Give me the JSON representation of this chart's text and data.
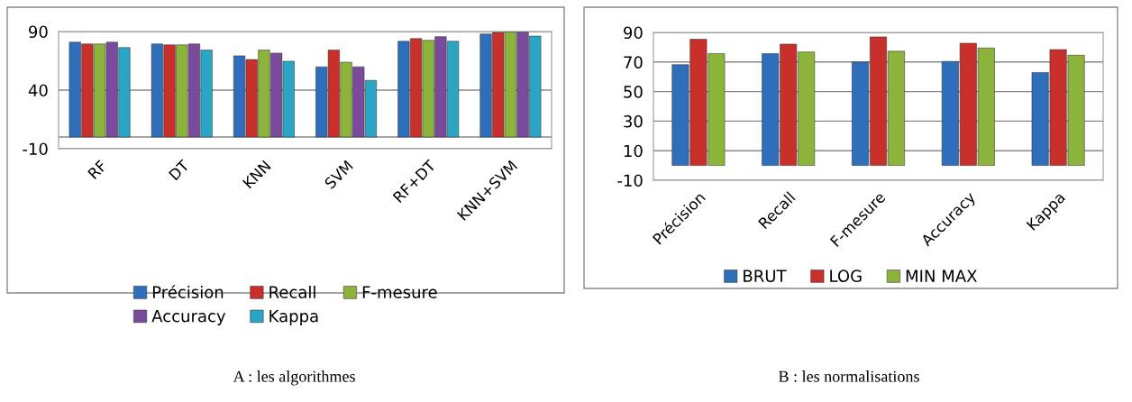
{
  "chart_data": [
    {
      "type": "bar",
      "categories": [
        "RF",
        "DT",
        "KNN",
        "SVM",
        "RF+DT",
        "KNN+SVM"
      ],
      "ylim": [
        -10,
        90
      ],
      "yticks": [
        -10,
        40,
        90
      ],
      "grid": "y",
      "legend": "bottom",
      "ref_lines": [
        {
          "axis": "y",
          "value": 0
        }
      ],
      "annotations": [
        "A : les algorithmes"
      ],
      "series": [
        {
          "name": "Précision",
          "color": "#2f6eba",
          "values": [
            80.9,
            79.4,
            69.3,
            59.9,
            81.7,
            87.9
          ]
        },
        {
          "name": "Recall",
          "color": "#c9302c",
          "values": [
            79.4,
            78.6,
            66.1,
            74.2,
            84.0,
            89.2
          ]
        },
        {
          "name": "F-mesure",
          "color": "#8db43a",
          "values": [
            79.4,
            78.6,
            74.2,
            63.8,
            82.5,
            89.5
          ]
        },
        {
          "name": "Accuracy",
          "color": "#7a4a9c",
          "values": [
            80.9,
            79.4,
            71.6,
            59.9,
            85.6,
            89.5
          ]
        },
        {
          "name": "Kappa",
          "color": "#2aa6c4",
          "values": [
            76.3,
            74.2,
            64.6,
            48.3,
            81.7,
            86.1
          ]
        }
      ]
    },
    {
      "type": "bar",
      "categories": [
        "Précision",
        "Recall",
        "F-mesure",
        "Accuracy",
        "Kappa"
      ],
      "ylim": [
        -10,
        90
      ],
      "yticks": [
        -10,
        10,
        30,
        50,
        70,
        90
      ],
      "grid": "y",
      "legend": "bottom",
      "annotations": [
        "B : les normalisations"
      ],
      "series": [
        {
          "name": "BRUT",
          "color": "#2f6eba",
          "values": [
            68.2,
            75.7,
            70.0,
            70.4,
            62.9
          ]
        },
        {
          "name": "LOG",
          "color": "#c9302c",
          "values": [
            85.4,
            82.1,
            87.0,
            82.7,
            78.4
          ]
        },
        {
          "name": "MIN MAX",
          "color": "#8db43a",
          "values": [
            75.7,
            76.8,
            77.3,
            79.5,
            74.6
          ]
        }
      ]
    }
  ]
}
